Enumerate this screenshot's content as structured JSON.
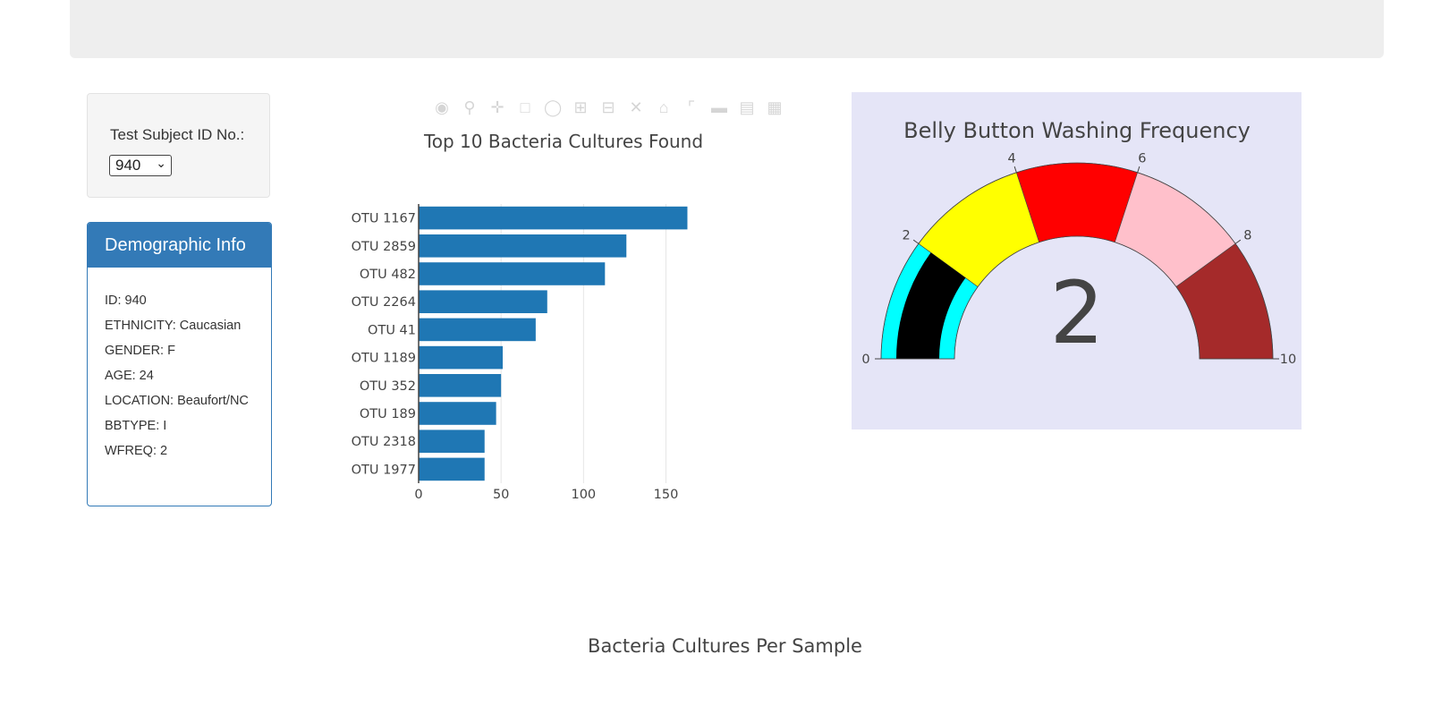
{
  "selector": {
    "label": "Test Subject ID No.:",
    "selected": "940"
  },
  "demographics": {
    "heading": "Demographic Info",
    "lines": [
      "ID: 940",
      "ETHNICITY: Caucasian",
      "GENDER: F",
      "AGE: 24",
      "LOCATION: Beaufort/NC",
      "BBTYPE: I",
      "WFREQ: 2"
    ]
  },
  "modebar_icons": [
    "camera-icon",
    "zoom-icon",
    "pan-icon",
    "box-select-icon",
    "lasso-icon",
    "zoom-in-icon",
    "zoom-out-icon",
    "autoscale-icon",
    "reset-axes-icon",
    "spike-lines-icon",
    "hover-closest-icon",
    "hover-compare-icon",
    "plotly-logo-icon"
  ],
  "chart_data": [
    {
      "type": "bar",
      "orientation": "horizontal",
      "title": "Top 10 Bacteria Cultures Found",
      "categories": [
        "OTU 1167",
        "OTU 2859",
        "OTU 482",
        "OTU 2264",
        "OTU 41",
        "OTU 1189",
        "OTU 352",
        "OTU 189",
        "OTU 2318",
        "OTU 1977"
      ],
      "values": [
        163,
        126,
        113,
        78,
        71,
        51,
        50,
        47,
        40,
        40
      ],
      "xticks": [
        0,
        50,
        100,
        150
      ],
      "xlim": [
        0,
        166
      ],
      "grid": true,
      "color": "#1f77b4"
    },
    {
      "type": "gauge",
      "title": "Belly Button Washing Frequency",
      "value": 2,
      "value_label": "2",
      "range": [
        0,
        10
      ],
      "ticks": [
        "0",
        "2",
        "4",
        "6",
        "8",
        "10"
      ],
      "steps": [
        {
          "range": [
            0,
            2
          ],
          "color": "#00ffff"
        },
        {
          "range": [
            2,
            4
          ],
          "color": "#ffff00"
        },
        {
          "range": [
            4,
            6
          ],
          "color": "#ff0000"
        },
        {
          "range": [
            6,
            8
          ],
          "color": "#ffc0cb"
        },
        {
          "range": [
            8,
            10
          ],
          "color": "#a52a2a"
        }
      ],
      "bar_color": "#000000",
      "background": "#e5e5f7"
    },
    {
      "type": "scatter",
      "title": "Bacteria Cultures Per Sample"
    }
  ]
}
